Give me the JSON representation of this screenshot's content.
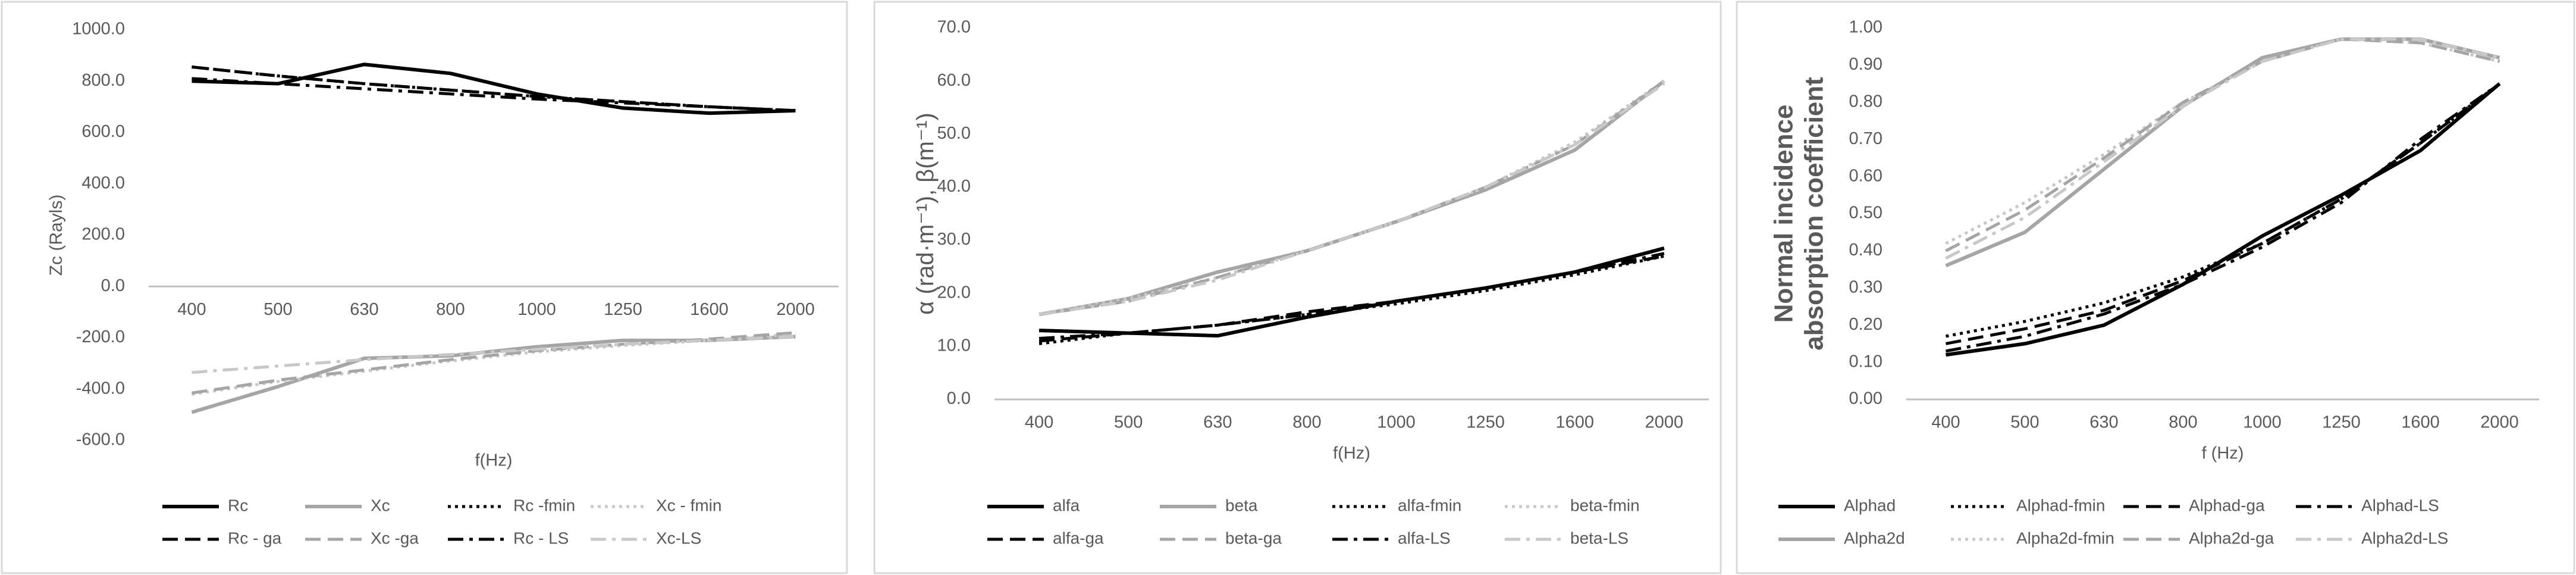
{
  "chart_data": [
    {
      "type": "line",
      "y_label": "Zc (Rayls)",
      "x_label": "f(Hz)",
      "categories": [
        "400",
        "500",
        "630",
        "800",
        "1000",
        "1250",
        "1600",
        "2000"
      ],
      "ylim": [
        -600,
        1000
      ],
      "yticks": [
        {
          "value": -600,
          "label": "-600.0"
        },
        {
          "value": -400,
          "label": "-400.0"
        },
        {
          "value": -200,
          "label": "-200.0"
        },
        {
          "value": 0,
          "label": "0.0"
        },
        {
          "value": 200,
          "label": "200.0"
        },
        {
          "value": 400,
          "label": "400.0"
        },
        {
          "value": 600,
          "label": "600.0"
        },
        {
          "value": 800,
          "label": "800.0"
        },
        {
          "value": 1000,
          "label": "1000.0"
        }
      ],
      "grid": false,
      "series": [
        {
          "name": "Rc",
          "color": "#000000",
          "dash": "solid",
          "values": [
            800,
            790,
            865,
            830,
            750,
            695,
            675,
            685
          ]
        },
        {
          "name": "Xc",
          "color": "#a5a5a5",
          "dash": "solid",
          "values": [
            -490,
            -390,
            -280,
            -270,
            -235,
            -210,
            -210,
            -195
          ]
        },
        {
          "name": "Rc -fmin",
          "color": "#000000",
          "dash": "dotted",
          "values": [
            855,
            820,
            790,
            765,
            740,
            720,
            700,
            685
          ]
        },
        {
          "name": "Xc - fmin",
          "color": "#c8c8c8",
          "dash": "dotted",
          "values": [
            -420,
            -370,
            -330,
            -290,
            -255,
            -230,
            -210,
            -185
          ]
        },
        {
          "name": "Rc - ga",
          "color": "#000000",
          "dash": "dashed",
          "values": [
            855,
            820,
            790,
            765,
            740,
            720,
            700,
            685
          ]
        },
        {
          "name": "Xc -ga",
          "color": "#a5a5a5",
          "dash": "dashed",
          "values": [
            -415,
            -365,
            -325,
            -285,
            -250,
            -225,
            -205,
            -180
          ]
        },
        {
          "name": "Rc - LS",
          "color": "#000000",
          "dash": "dashdot",
          "values": [
            810,
            790,
            770,
            750,
            730,
            715,
            700,
            685
          ]
        },
        {
          "name": "Xc-LS",
          "color": "#c8c8c8",
          "dash": "dashdot",
          "values": [
            -335,
            -310,
            -285,
            -265,
            -245,
            -225,
            -210,
            -195
          ]
        }
      ]
    },
    {
      "type": "line",
      "y_label": "α (rad·m⁻¹), β(m⁻¹)",
      "x_label": "f(Hz)",
      "categories": [
        "400",
        "500",
        "630",
        "800",
        "1000",
        "1250",
        "1600",
        "2000"
      ],
      "ylim": [
        0,
        70
      ],
      "yticks": [
        {
          "value": 0,
          "label": "0.0"
        },
        {
          "value": 10,
          "label": "10.0"
        },
        {
          "value": 20,
          "label": "20.0"
        },
        {
          "value": 30,
          "label": "30.0"
        },
        {
          "value": 40,
          "label": "40.0"
        },
        {
          "value": 50,
          "label": "50.0"
        },
        {
          "value": 60,
          "label": "60.0"
        },
        {
          "value": 70,
          "label": "70.0"
        }
      ],
      "grid": false,
      "series": [
        {
          "name": "alfa",
          "color": "#000000",
          "dash": "solid",
          "values": [
            13,
            12.5,
            12,
            15.5,
            18.5,
            21,
            24,
            28.5
          ]
        },
        {
          "name": "beta",
          "color": "#a5a5a5",
          "dash": "solid",
          "values": [
            16,
            19,
            24,
            28,
            33.5,
            39.5,
            47,
            60
          ]
        },
        {
          "name": "alfa-fmin",
          "color": "#000000",
          "dash": "dotted",
          "values": [
            10.5,
            12.5,
            14,
            16,
            18,
            20.5,
            23.5,
            27
          ]
        },
        {
          "name": "beta-fmin",
          "color": "#c8c8c8",
          "dash": "dotted",
          "values": [
            16,
            19,
            23,
            28,
            33.5,
            40,
            48.5,
            60
          ]
        },
        {
          "name": "alfa-ga",
          "color": "#000000",
          "dash": "dashed",
          "values": [
            11,
            12.5,
            14,
            16.5,
            18.5,
            21,
            24,
            27
          ]
        },
        {
          "name": "beta-ga",
          "color": "#a5a5a5",
          "dash": "dashed",
          "values": [
            16,
            18.5,
            23,
            28,
            33.5,
            40,
            48,
            60
          ]
        },
        {
          "name": "alfa-LS",
          "color": "#000000",
          "dash": "dashdot",
          "values": [
            11.5,
            12.5,
            14,
            16,
            18.5,
            21,
            24,
            27.5
          ]
        },
        {
          "name": "beta-LS",
          "color": "#c8c8c8",
          "dash": "dashdot",
          "values": [
            16,
            18.5,
            22.5,
            28,
            33.5,
            40,
            48,
            59.5
          ]
        }
      ]
    },
    {
      "type": "line",
      "y_label": "Normal incidence absorption coefficient",
      "x_label": "f (Hz)",
      "categories": [
        "400",
        "500",
        "630",
        "800",
        "1000",
        "1250",
        "1600",
        "2000"
      ],
      "ylim": [
        0,
        1
      ],
      "yticks": [
        {
          "value": 0,
          "label": "0.00"
        },
        {
          "value": 0.1,
          "label": "0.10"
        },
        {
          "value": 0.2,
          "label": "0.20"
        },
        {
          "value": 0.3,
          "label": "0.30"
        },
        {
          "value": 0.4,
          "label": "0.40"
        },
        {
          "value": 0.5,
          "label": "0.50"
        },
        {
          "value": 0.6,
          "label": "0.60"
        },
        {
          "value": 0.7,
          "label": "0.70"
        },
        {
          "value": 0.8,
          "label": "0.80"
        },
        {
          "value": 0.9,
          "label": "0.90"
        },
        {
          "value": 1,
          "label": "1.00"
        }
      ],
      "grid": false,
      "series": [
        {
          "name": "Alphad",
          "color": "#000000",
          "dash": "solid",
          "values": [
            0.12,
            0.15,
            0.2,
            0.31,
            0.44,
            0.55,
            0.67,
            0.85
          ]
        },
        {
          "name": "Alphad-fmin",
          "color": "#000000",
          "dash": "dotted",
          "values": [
            0.17,
            0.21,
            0.26,
            0.33,
            0.42,
            0.54,
            0.69,
            0.85
          ]
        },
        {
          "name": "Alphad-ga",
          "color": "#000000",
          "dash": "dashed",
          "values": [
            0.15,
            0.19,
            0.24,
            0.32,
            0.42,
            0.54,
            0.69,
            0.85
          ]
        },
        {
          "name": "Alphad-LS",
          "color": "#000000",
          "dash": "dashdot",
          "values": [
            0.13,
            0.17,
            0.23,
            0.31,
            0.41,
            0.53,
            0.7,
            0.85
          ]
        },
        {
          "name": "Alpha2d",
          "color": "#a5a5a5",
          "dash": "solid",
          "values": [
            0.36,
            0.45,
            0.62,
            0.79,
            0.92,
            0.97,
            0.97,
            0.92
          ]
        },
        {
          "name": "Alpha2d-fmin",
          "color": "#c8c8c8",
          "dash": "dotted",
          "values": [
            0.42,
            0.53,
            0.66,
            0.8,
            0.91,
            0.97,
            0.96,
            0.91
          ]
        },
        {
          "name": "Alpha2d-ga",
          "color": "#a5a5a5",
          "dash": "dashed",
          "values": [
            0.4,
            0.51,
            0.65,
            0.8,
            0.91,
            0.97,
            0.96,
            0.91
          ]
        },
        {
          "name": "Alpha2d-LS",
          "color": "#c8c8c8",
          "dash": "dashdot",
          "values": [
            0.38,
            0.49,
            0.64,
            0.79,
            0.91,
            0.97,
            0.97,
            0.92
          ]
        }
      ]
    }
  ]
}
